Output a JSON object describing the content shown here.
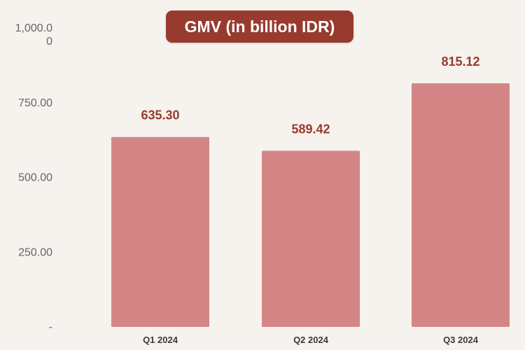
{
  "chart_data": {
    "type": "bar",
    "title": "GMV (in billion IDR)",
    "categories": [
      "Q1 2024",
      "Q2 2024",
      "Q3 2024"
    ],
    "values": [
      635.3,
      589.42,
      815.12
    ],
    "value_labels": [
      "635.30",
      "589.42",
      "815.12"
    ],
    "xlabel": "",
    "ylabel": "",
    "ylim": [
      0,
      1000
    ],
    "yticks": [
      {
        "value": 1000,
        "lines": [
          "1,000.0",
          "0"
        ]
      },
      {
        "value": 750,
        "lines": [
          "750.00"
        ]
      },
      {
        "value": 500,
        "lines": [
          "500.00"
        ]
      },
      {
        "value": 250,
        "lines": [
          "250.00"
        ]
      },
      {
        "value": 0,
        "lines": [
          "-"
        ]
      }
    ],
    "grid": false,
    "legend": "none",
    "colors": {
      "bar": "#d48686",
      "value_label": "#983a2e",
      "title_background": "#983a2e",
      "title_text": "#ffffff",
      "background": "#f6f3ee"
    }
  }
}
